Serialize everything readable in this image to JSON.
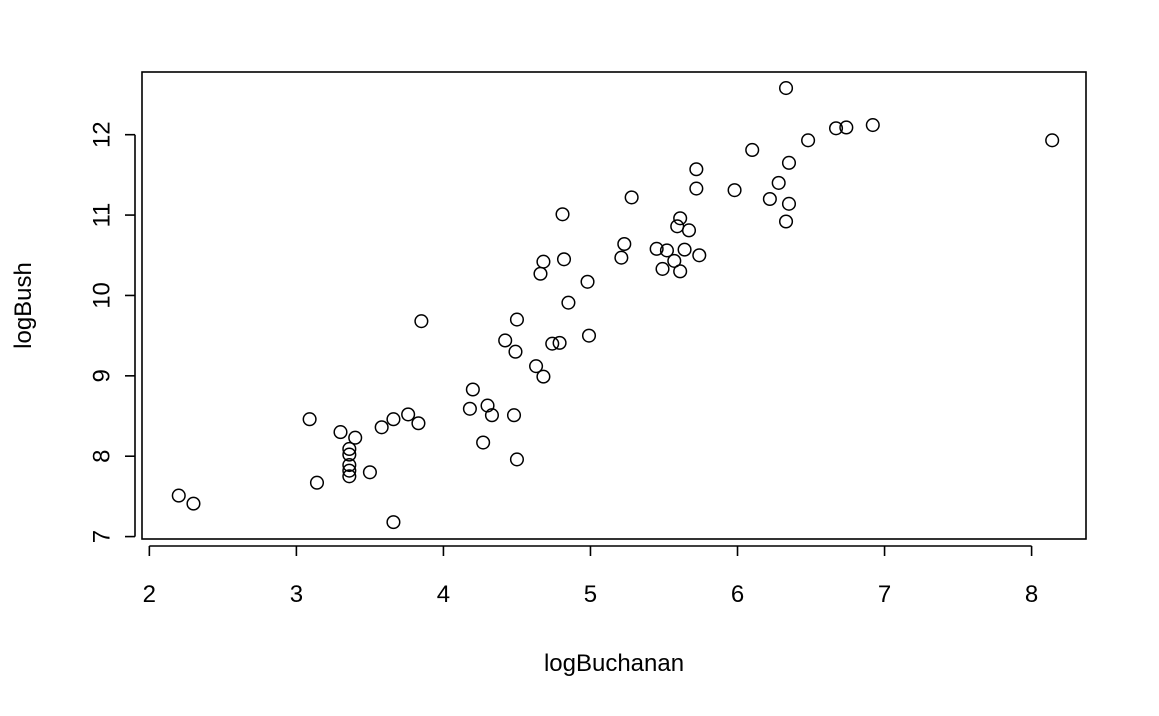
{
  "chart_data": {
    "type": "scatter",
    "title": "",
    "xlabel": "logBuchanan",
    "ylabel": "logBush",
    "xlim": [
      1.95,
      8.37
    ],
    "ylim": [
      6.97,
      12.78
    ],
    "x_ticks": [
      2,
      3,
      4,
      5,
      6,
      7,
      8
    ],
    "y_ticks": [
      7,
      8,
      9,
      10,
      11,
      12
    ],
    "x_tick_labels": [
      "2",
      "3",
      "4",
      "5",
      "6",
      "7",
      "8"
    ],
    "y_tick_labels": [
      "7",
      "8",
      "9",
      "10",
      "11",
      "12"
    ],
    "grid": false,
    "legend": "none",
    "marker": "open-circle",
    "points": [
      [
        2.2,
        7.51
      ],
      [
        2.3,
        7.41
      ],
      [
        3.09,
        8.46
      ],
      [
        3.14,
        7.67
      ],
      [
        3.3,
        8.3
      ],
      [
        3.36,
        8.09
      ],
      [
        3.36,
        8.02
      ],
      [
        3.36,
        7.89
      ],
      [
        3.36,
        7.82
      ],
      [
        3.36,
        7.75
      ],
      [
        3.4,
        8.23
      ],
      [
        3.5,
        7.8
      ],
      [
        3.58,
        8.36
      ],
      [
        3.66,
        8.46
      ],
      [
        3.66,
        7.18
      ],
      [
        3.76,
        8.52
      ],
      [
        3.83,
        8.41
      ],
      [
        3.85,
        9.68
      ],
      [
        4.18,
        8.59
      ],
      [
        4.2,
        8.83
      ],
      [
        4.27,
        8.17
      ],
      [
        4.3,
        8.63
      ],
      [
        4.33,
        8.51
      ],
      [
        4.42,
        9.44
      ],
      [
        4.48,
        8.51
      ],
      [
        4.49,
        9.3
      ],
      [
        4.5,
        9.7
      ],
      [
        4.5,
        7.96
      ],
      [
        4.63,
        9.12
      ],
      [
        4.66,
        10.27
      ],
      [
        4.68,
        10.42
      ],
      [
        4.68,
        8.99
      ],
      [
        4.74,
        9.4
      ],
      [
        4.79,
        9.41
      ],
      [
        4.81,
        11.01
      ],
      [
        4.82,
        10.45
      ],
      [
        4.85,
        9.91
      ],
      [
        4.98,
        10.17
      ],
      [
        4.99,
        9.5
      ],
      [
        5.21,
        10.47
      ],
      [
        5.23,
        10.64
      ],
      [
        5.28,
        11.22
      ],
      [
        5.45,
        10.58
      ],
      [
        5.49,
        10.33
      ],
      [
        5.52,
        10.56
      ],
      [
        5.57,
        10.43
      ],
      [
        5.59,
        10.86
      ],
      [
        5.61,
        10.96
      ],
      [
        5.61,
        10.3
      ],
      [
        5.64,
        10.57
      ],
      [
        5.67,
        10.81
      ],
      [
        5.72,
        11.57
      ],
      [
        5.72,
        11.33
      ],
      [
        5.74,
        10.5
      ],
      [
        5.98,
        11.31
      ],
      [
        6.1,
        11.81
      ],
      [
        6.22,
        11.2
      ],
      [
        6.28,
        11.4
      ],
      [
        6.33,
        12.58
      ],
      [
        6.33,
        10.92
      ],
      [
        6.35,
        11.14
      ],
      [
        6.35,
        11.65
      ],
      [
        6.48,
        11.93
      ],
      [
        6.67,
        12.08
      ],
      [
        6.74,
        12.09
      ],
      [
        6.92,
        12.12
      ],
      [
        8.14,
        11.93
      ]
    ]
  }
}
